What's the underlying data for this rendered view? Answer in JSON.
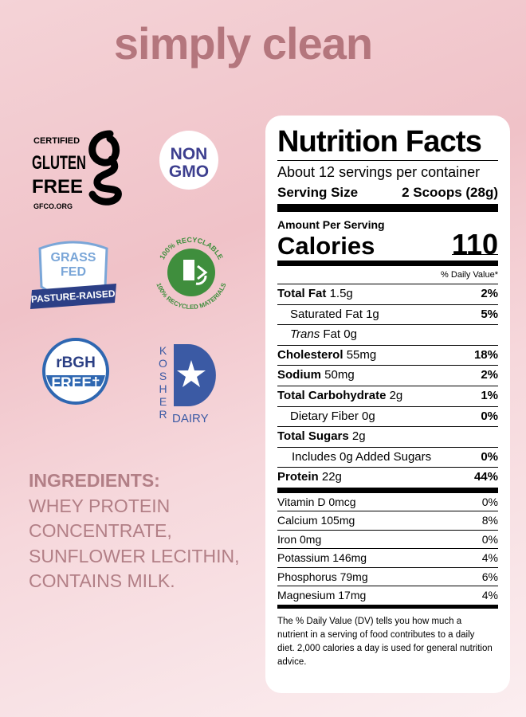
{
  "title": "simply clean",
  "badges": {
    "gluten_free": {
      "line1": "CERTIFIED",
      "line2": "GLUTEN",
      "line3": "FREE",
      "footer": "GFCO.ORG"
    },
    "non_gmo": {
      "line1": "NON",
      "line2": "GMO"
    },
    "grass_fed": {
      "line1": "GRASS",
      "line2": "FED",
      "ribbon": "PASTURE-RAISED"
    },
    "recyclable": {
      "top": "100% RECYCLABLE",
      "bottom": "100% RECYCLED MATERIALS"
    },
    "rbgh_free": {
      "line1": "rBGH",
      "line2": "FREE†"
    },
    "kosher": {
      "side": "KOSHER",
      "bottom": "DAIRY"
    }
  },
  "ingredients": {
    "heading": "INGREDIENTS:",
    "lines": [
      "WHEY PROTEIN",
      "CONCENTRATE,",
      "SUNFLOWER LECITHIN,",
      "CONTAINS MILK."
    ]
  },
  "nutrition_facts": {
    "title": "Nutrition Facts",
    "servings": "About 12 servings per container",
    "serving_size_label": "Serving Size",
    "serving_size": "2 Scoops (28g)",
    "amount_per_serving": "Amount Per Serving",
    "calories_label": "Calories",
    "calories": "110",
    "dv_header": "% Daily Value*",
    "nutrients": [
      {
        "name": "Total Fat",
        "amount": "1.5g",
        "dv": "2%",
        "style": "bold"
      },
      {
        "name": "Saturated Fat",
        "amount": "1g",
        "dv": "5%",
        "style": "indent"
      },
      {
        "italic": "Trans",
        "name": "Fat",
        "amount": "0g",
        "style": "indent"
      },
      {
        "name": "Cholesterol",
        "amount": "55mg",
        "dv": "18%",
        "style": "bold"
      },
      {
        "name": "Sodium",
        "amount": "50mg",
        "dv": "2%",
        "style": "bold"
      },
      {
        "name": "Total Carbohydrate",
        "amount": "2g",
        "dv": "1%",
        "style": "bold"
      },
      {
        "name": "Dietary Fiber",
        "amount": "0g",
        "dv": "0%",
        "style": "indent"
      },
      {
        "name": "Total Sugars",
        "amount": "2g",
        "style": "bold"
      },
      {
        "name": "Includes 0g Added Sugars",
        "dv": "0%",
        "style": "indent2"
      },
      {
        "name": "Protein",
        "amount": "22g",
        "dv": "44%",
        "style": "bold"
      }
    ],
    "vitamins": [
      {
        "name": "Vitamin D",
        "amount": "0mcg",
        "dv": "0%"
      },
      {
        "name": "Calcium",
        "amount": "105mg",
        "dv": "8%"
      },
      {
        "name": "Iron",
        "amount": "0mg",
        "dv": "0%"
      },
      {
        "name": "Potassium",
        "amount": "146mg",
        "dv": "4%"
      },
      {
        "name": "Phosphorus",
        "amount": "79mg",
        "dv": "6%"
      },
      {
        "name": "Magnesium",
        "amount": "17mg",
        "dv": "4%"
      }
    ],
    "footnote": "The % Daily Value (DV) tells you how much a nutrient in a serving of food contributes to a daily diet. 2,000 calories a day is used for general nutrition advice."
  }
}
